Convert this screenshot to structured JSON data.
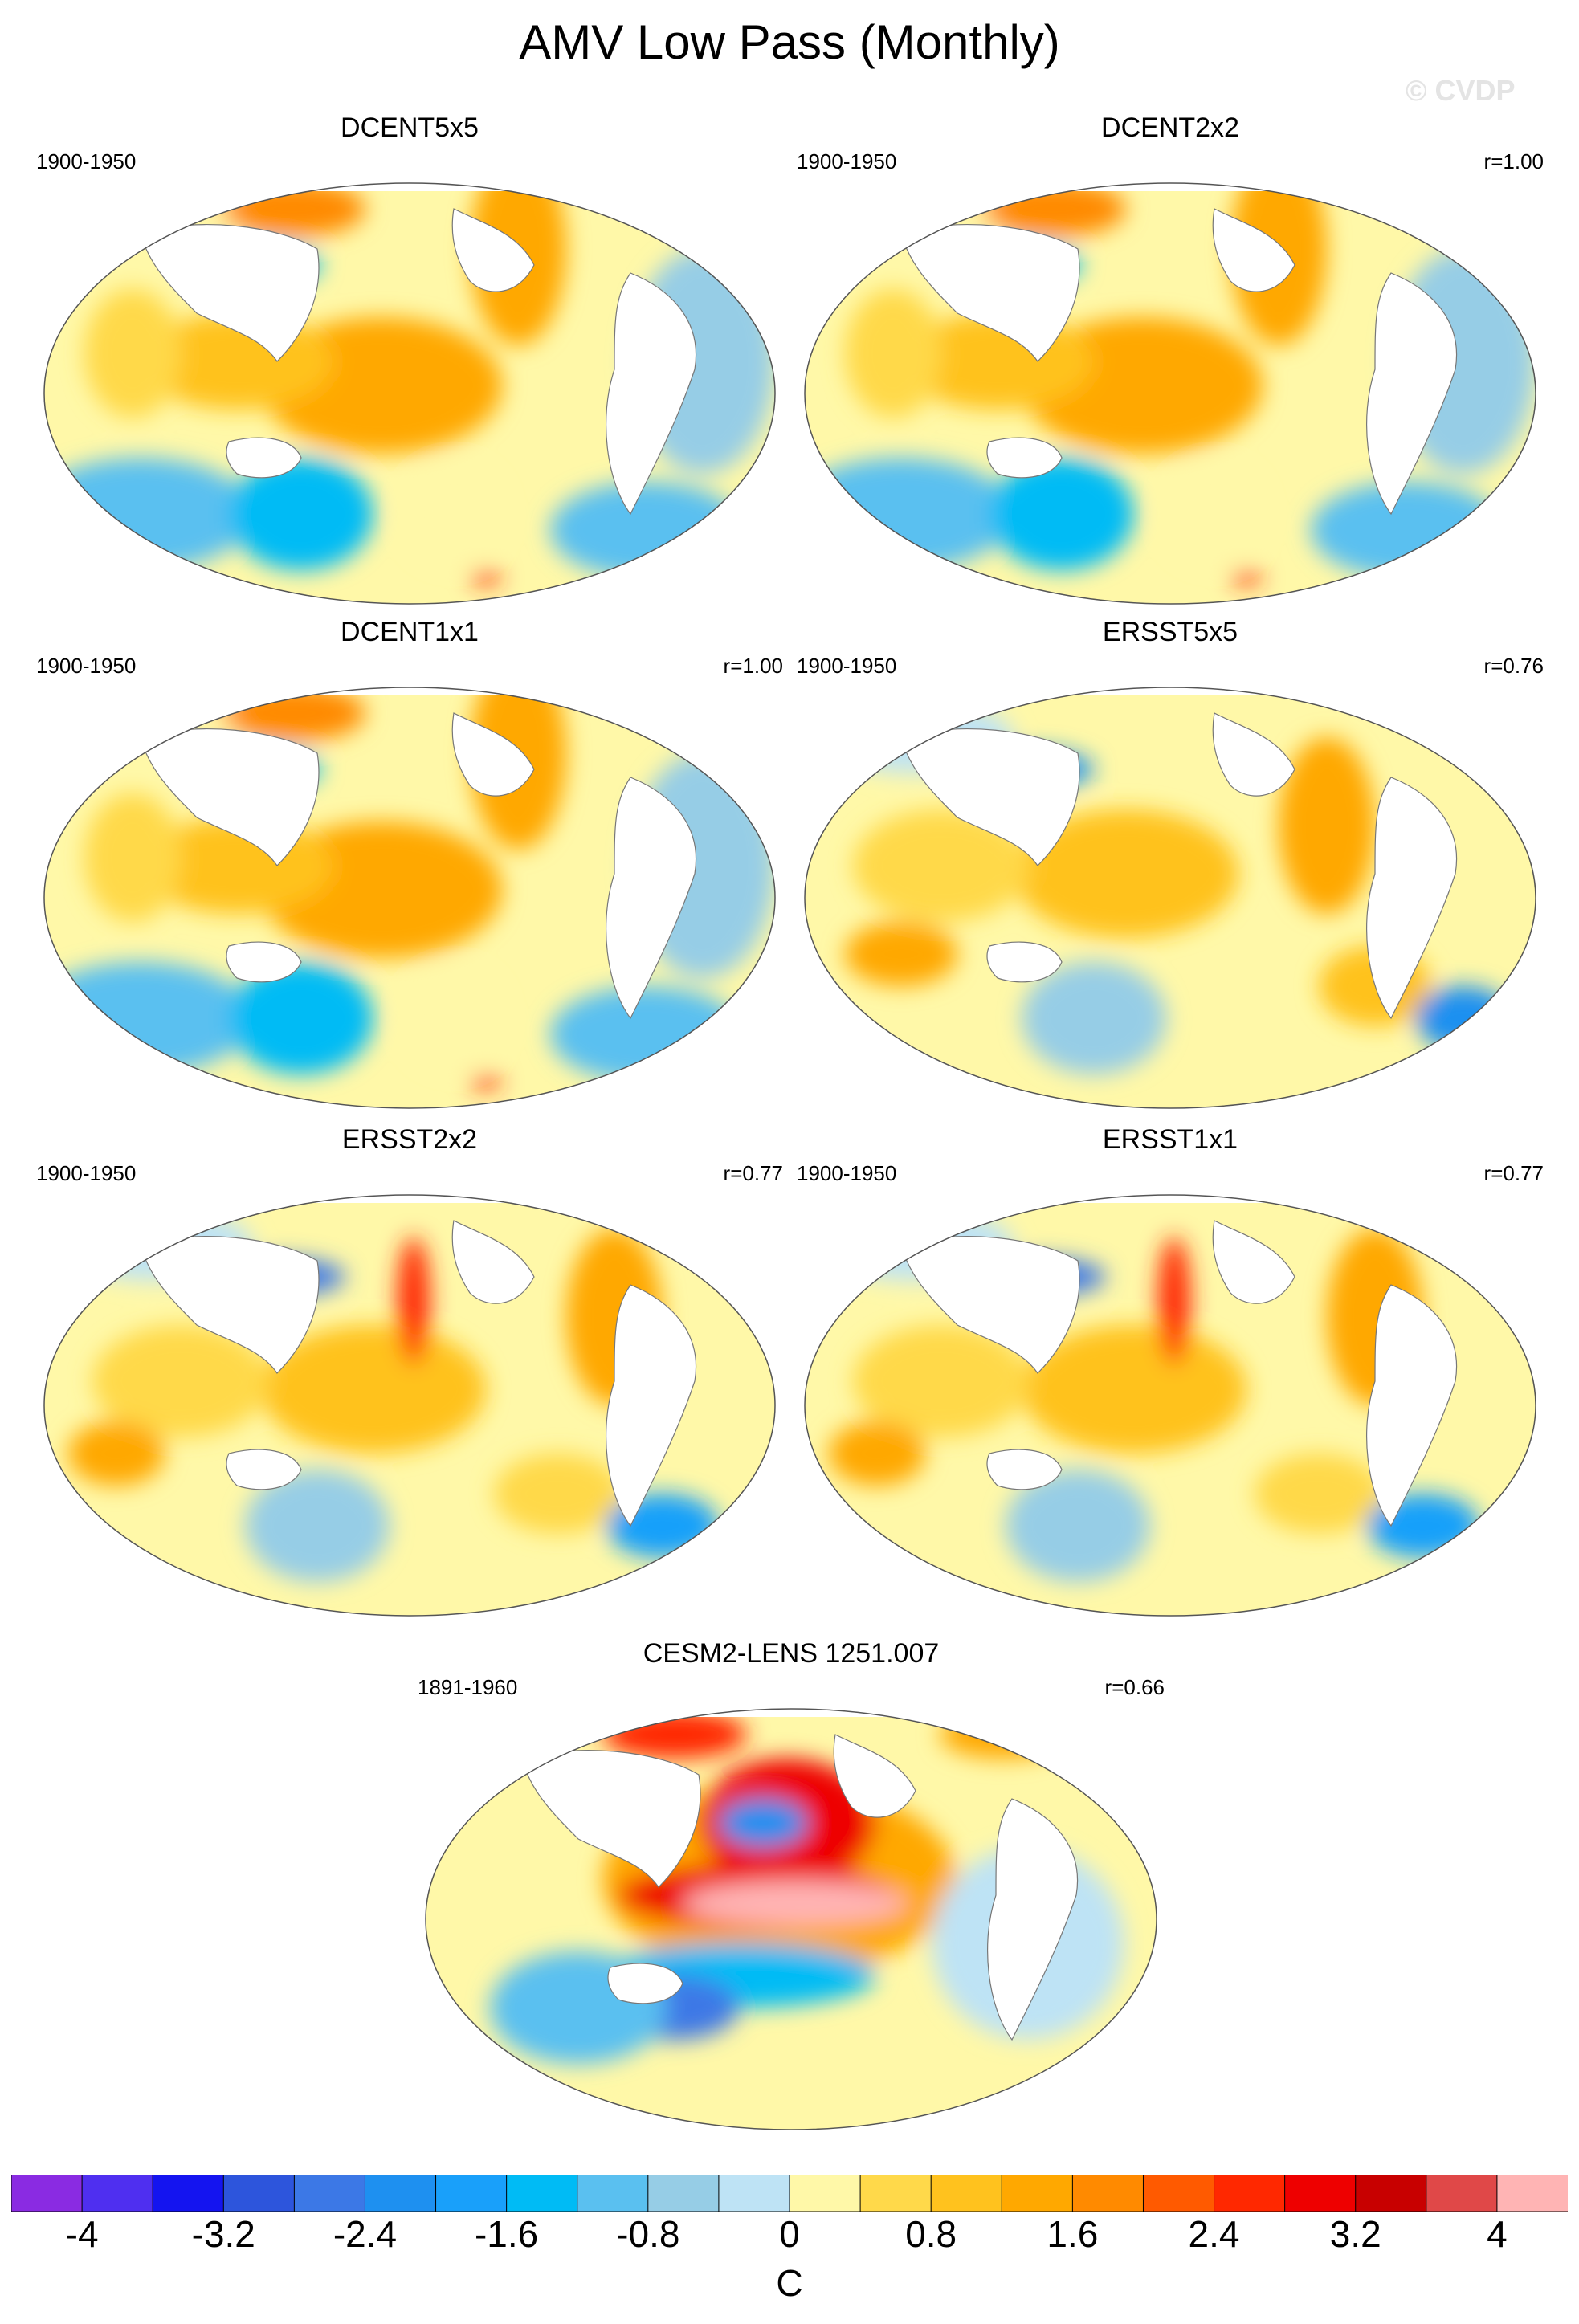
{
  "title": "AMV Low Pass (Monthly)",
  "watermark": "© CVDP",
  "panels": [
    {
      "title": "DCENT5x5",
      "period": "1900-1950",
      "corr": ""
    },
    {
      "title": "DCENT2x2",
      "period": "1900-1950",
      "corr": "r=1.00"
    },
    {
      "title": "DCENT1x1",
      "period": "1900-1950",
      "corr": "r=1.00"
    },
    {
      "title": "ERSST5x5",
      "period": "1900-1950",
      "corr": "r=0.76"
    },
    {
      "title": "ERSST2x2",
      "period": "1900-1950",
      "corr": "r=0.77"
    },
    {
      "title": "ERSST1x1",
      "period": "1900-1950",
      "corr": "r=0.77"
    },
    {
      "title": "CESM2-LENS 1251.007",
      "period": "1891-1960",
      "corr": "r=0.66"
    }
  ],
  "colorbar": {
    "unit": "C",
    "ticks": [
      "-4",
      "-3.2",
      "-2.4",
      "-1.6",
      "-0.8",
      "0",
      "0.8",
      "1.6",
      "2.4",
      "3.2",
      "4"
    ],
    "colors": [
      "#8a2be2",
      "#4f2ff0",
      "#1414f0",
      "#2d55dc",
      "#3c78e6",
      "#1e90f0",
      "#19a0fa",
      "#00bbf5",
      "#5ac0f0",
      "#96cde6",
      "#bee3f5",
      "#fff8a8",
      "#ffd94a",
      "#ffc21e",
      "#ffa800",
      "#ff8a00",
      "#ff5a00",
      "#ff2800",
      "#ee0000",
      "#c80000",
      "#e04848",
      "#ffb4b4"
    ]
  }
}
